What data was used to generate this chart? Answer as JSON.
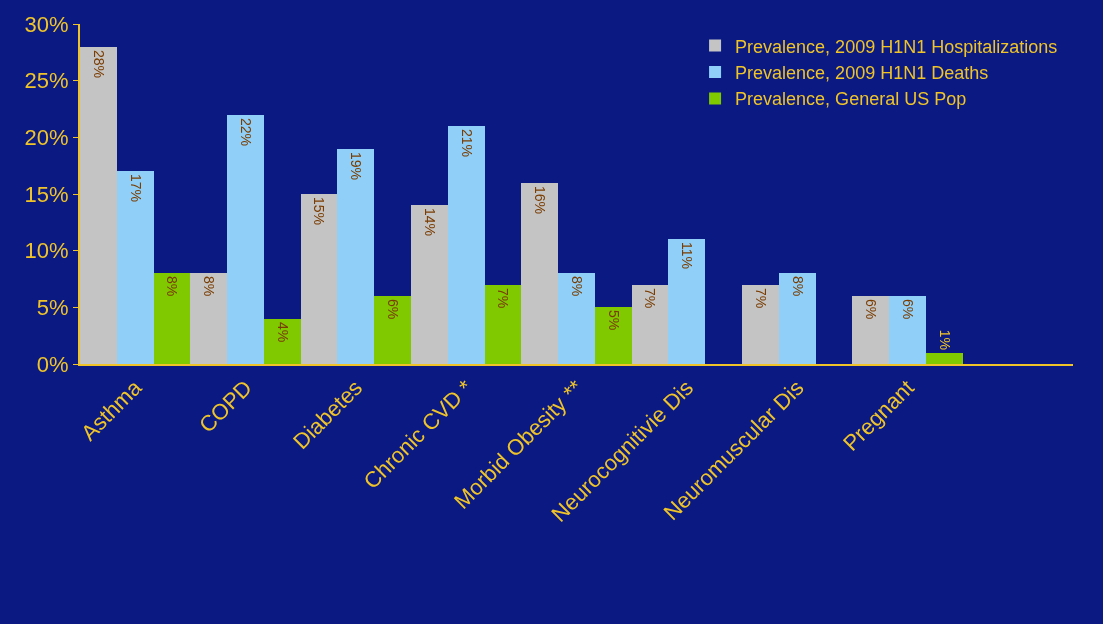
{
  "chart_data": {
    "type": "bar",
    "categories": [
      "Asthma",
      "COPD",
      "Diabetes",
      "Chronic CVD *",
      "Morbid Obesity **",
      "Neurocognitivie Dis",
      "Neuromuscular Dis",
      "Pregnant"
    ],
    "series": [
      {
        "name": "Prevalence, 2009 H1N1 Hospitalizations",
        "color": "#c4c4c4",
        "values": [
          28,
          8,
          15,
          14,
          16,
          7,
          7,
          6
        ],
        "value_labels": [
          "28%",
          "8%",
          "15%",
          "14%",
          "16%",
          "7%",
          "7%",
          "6%"
        ]
      },
      {
        "name": "Prevalence, 2009 H1N1 Deaths",
        "color": "#90d0f8",
        "values": [
          17,
          22,
          19,
          21,
          8,
          11,
          8,
          6
        ],
        "value_labels": [
          "17%",
          "22%",
          "19%",
          "21%",
          "8%",
          "11%",
          "8%",
          "6%"
        ]
      },
      {
        "name": "Prevalence, General US Pop",
        "color": "#80c800",
        "values": [
          8,
          4,
          6,
          7,
          5,
          null,
          null,
          1
        ],
        "value_labels": [
          "8%",
          "4%",
          "6%",
          "7%",
          "5%",
          null,
          null,
          "1%"
        ]
      }
    ],
    "ylim": [
      0,
      30
    ],
    "yticks": [
      {
        "value": 0,
        "label": "0%"
      },
      {
        "value": 5,
        "label": "5%"
      },
      {
        "value": 10,
        "label": "10%"
      },
      {
        "value": 15,
        "label": "15%"
      },
      {
        "value": 20,
        "label": "20%"
      },
      {
        "value": 25,
        "label": "25%"
      },
      {
        "value": 30,
        "label": "30%"
      }
    ],
    "legend": "top right"
  }
}
